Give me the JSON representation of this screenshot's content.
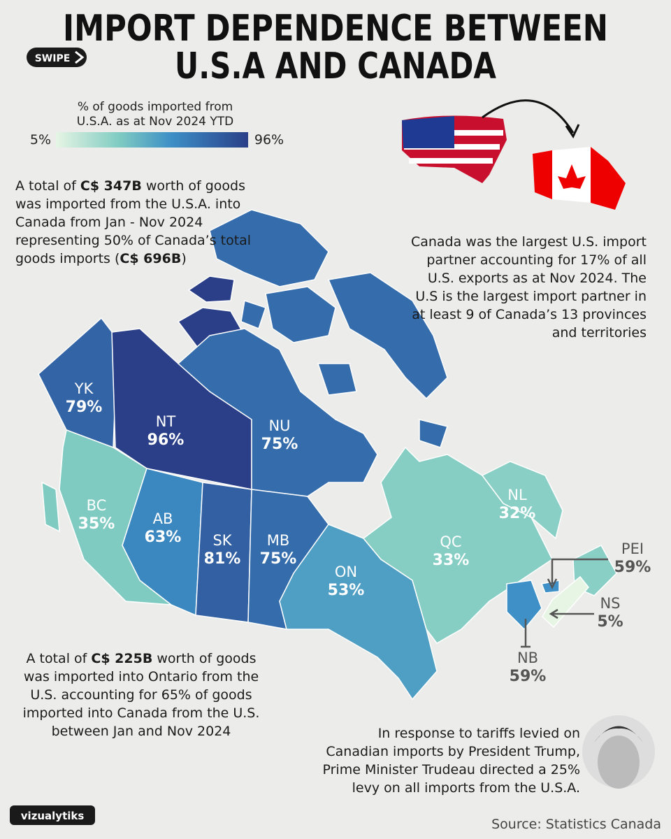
{
  "header": {
    "title_line1": "IMPORT DEPENDENCE BETWEEN",
    "title_line2": "U.S.A AND CANADA",
    "swipe": "SWIPE"
  },
  "legend": {
    "title_line1": "% of goods imported from",
    "title_line2": "U.S.A. as at Nov 2024 YTD",
    "min": 5,
    "min_label": "5%",
    "max": 96,
    "max_label": "96%"
  },
  "notes": {
    "canada_total": [
      [
        "A total of ",
        "C$ 347B",
        " worth of goods"
      ],
      [
        "was imported from the U.S.A. into"
      ],
      [
        "Canada from Jan - Nov 2024"
      ],
      [
        "representing 50% of Canada’s total"
      ],
      [
        "goods imports (",
        "C$ 696B",
        ")"
      ]
    ],
    "us_partner": [
      [
        "Canada was the largest U.S. import"
      ],
      [
        "partner accounting for 17% of all"
      ],
      [
        "U.S. exports as at Nov 2024. The"
      ],
      [
        "U.S is the largest import partner in"
      ],
      [
        "at least 9 of Canada’s 13 provinces"
      ],
      [
        "and territories"
      ]
    ],
    "ontario": [
      [
        "A total of ",
        "C$ 225B",
        " worth of goods"
      ],
      [
        "was imported into Ontario from the"
      ],
      [
        "U.S. accounting for 65% of goods"
      ],
      [
        "imported into Canada from the U.S."
      ],
      [
        "between Jan and Nov 2024"
      ]
    ],
    "tariffs": [
      [
        "In response to tariffs levied on"
      ],
      [
        "Canadian imports by President Trump,"
      ],
      [
        "Prime Minister Trudeau directed a 25%"
      ],
      [
        "levy on all imports from the U.S.A."
      ]
    ]
  },
  "provinces": [
    {
      "code": "YK",
      "value": 79,
      "label": "79%"
    },
    {
      "code": "NT",
      "value": 96,
      "label": "96%"
    },
    {
      "code": "NU",
      "value": 75,
      "label": "75%"
    },
    {
      "code": "BC",
      "value": 35,
      "label": "35%"
    },
    {
      "code": "AB",
      "value": 63,
      "label": "63%"
    },
    {
      "code": "SK",
      "value": 81,
      "label": "81%"
    },
    {
      "code": "MB",
      "value": 75,
      "label": "75%"
    },
    {
      "code": "ON",
      "value": 53,
      "label": "53%"
    },
    {
      "code": "QC",
      "value": 33,
      "label": "33%"
    },
    {
      "code": "NL",
      "value": 32,
      "label": "32%"
    },
    {
      "code": "PEI",
      "value": 59,
      "label": "59%"
    },
    {
      "code": "NS",
      "value": 5,
      "label": "5%"
    },
    {
      "code": "NB",
      "value": 59,
      "label": "59%"
    }
  ],
  "footer": {
    "brand": "vizualytiks",
    "source": "Source: Statistics Canada"
  }
}
